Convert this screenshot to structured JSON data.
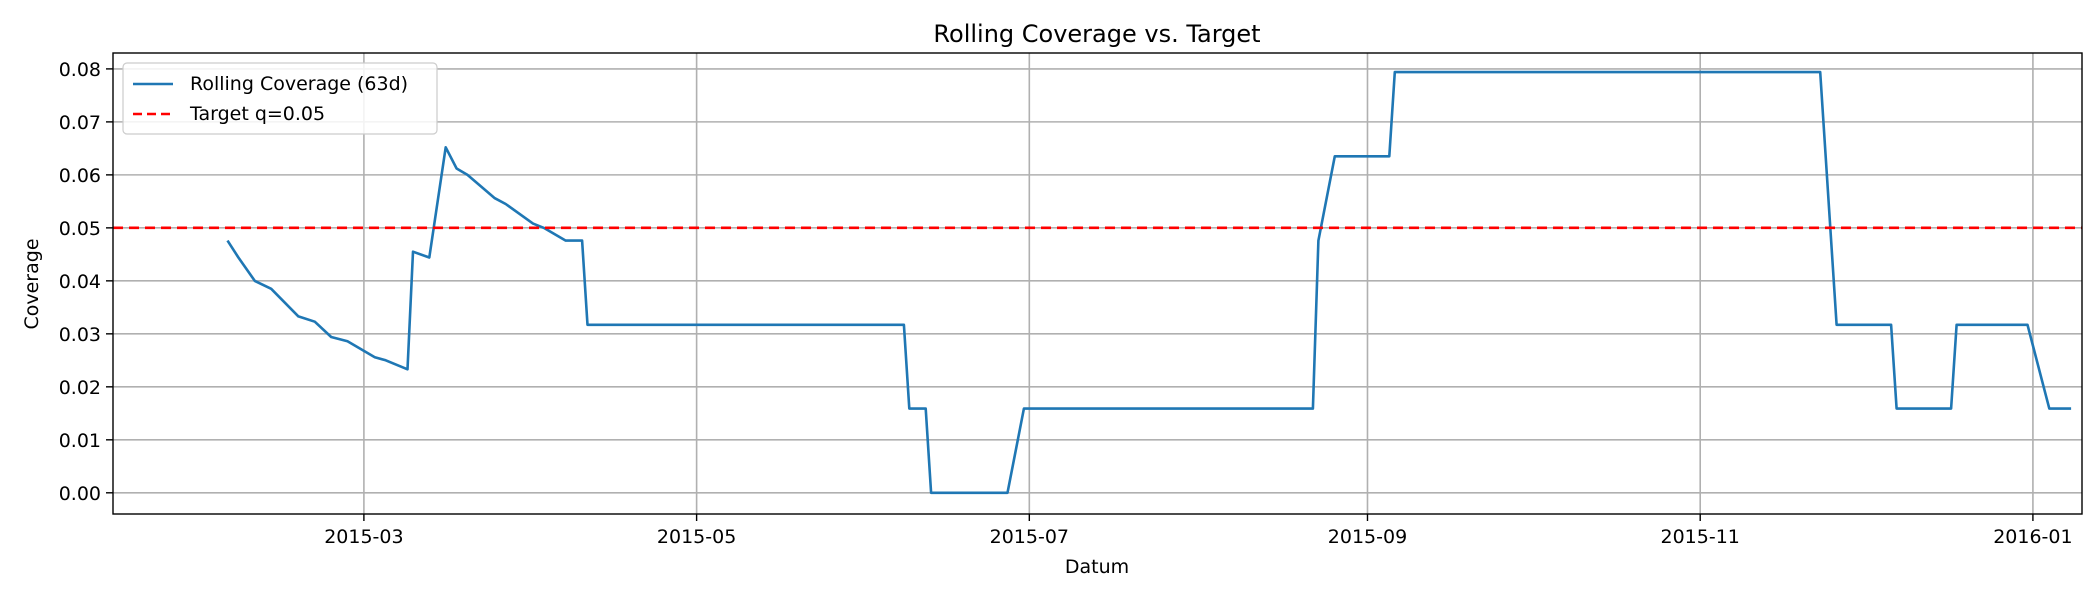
{
  "chart_data": {
    "type": "line",
    "title": "Rolling Coverage vs. Target",
    "xlabel": "Datum",
    "ylabel": "Coverage",
    "xlim": [
      "2015-01-14",
      "2016-01-10"
    ],
    "ylim": [
      -0.004,
      0.083
    ],
    "grid": true,
    "legend_position": "top-left",
    "x_ticks": [
      "2015-03",
      "2015-05",
      "2015-07",
      "2015-09",
      "2015-11",
      "2016-01"
    ],
    "y_ticks": [
      "0.00",
      "0.01",
      "0.02",
      "0.03",
      "0.04",
      "0.05",
      "0.06",
      "0.07",
      "0.08"
    ],
    "series": [
      {
        "name": "Rolling Coverage (63d)",
        "color": "#1f77b4",
        "style": "solid",
        "points": [
          [
            "2015-02-04",
            0.0476
          ],
          [
            "2015-02-06",
            0.0444
          ],
          [
            "2015-02-09",
            0.04
          ],
          [
            "2015-02-12",
            0.0385
          ],
          [
            "2015-02-17",
            0.0333
          ],
          [
            "2015-02-20",
            0.0323
          ],
          [
            "2015-02-23",
            0.0294
          ],
          [
            "2015-02-26",
            0.0286
          ],
          [
            "2015-03-03",
            0.0256
          ],
          [
            "2015-03-05",
            0.025
          ],
          [
            "2015-03-09",
            0.0233
          ],
          [
            "2015-03-10",
            0.0455
          ],
          [
            "2015-03-13",
            0.0444
          ],
          [
            "2015-03-16",
            0.0652
          ],
          [
            "2015-03-18",
            0.0612
          ],
          [
            "2015-03-20",
            0.06
          ],
          [
            "2015-03-25",
            0.0556
          ],
          [
            "2015-03-27",
            0.0545
          ],
          [
            "2015-04-01",
            0.0508
          ],
          [
            "2015-04-03",
            0.05
          ],
          [
            "2015-04-07",
            0.0476
          ],
          [
            "2015-04-10",
            0.0476
          ],
          [
            "2015-04-11",
            0.0317
          ],
          [
            "2015-06-08",
            0.0317
          ],
          [
            "2015-06-09",
            0.0159
          ],
          [
            "2015-06-12",
            0.0159
          ],
          [
            "2015-06-13",
            0.0
          ],
          [
            "2015-06-27",
            0.0
          ],
          [
            "2015-06-30",
            0.0159
          ],
          [
            "2015-08-22",
            0.0159
          ],
          [
            "2015-08-23",
            0.0476
          ],
          [
            "2015-08-26",
            0.0635
          ],
          [
            "2015-09-05",
            0.0635
          ],
          [
            "2015-09-06",
            0.0794
          ],
          [
            "2015-11-23",
            0.0794
          ],
          [
            "2015-11-26",
            0.0317
          ],
          [
            "2015-12-06",
            0.0317
          ],
          [
            "2015-12-07",
            0.0159
          ],
          [
            "2015-12-17",
            0.0159
          ],
          [
            "2015-12-18",
            0.0317
          ],
          [
            "2015-12-31",
            0.0317
          ],
          [
            "2016-01-04",
            0.0159
          ],
          [
            "2016-01-08",
            0.0159
          ]
        ]
      },
      {
        "name": "Target q=0.05",
        "color": "#ff0000",
        "style": "dashed",
        "constant": 0.05
      }
    ]
  }
}
